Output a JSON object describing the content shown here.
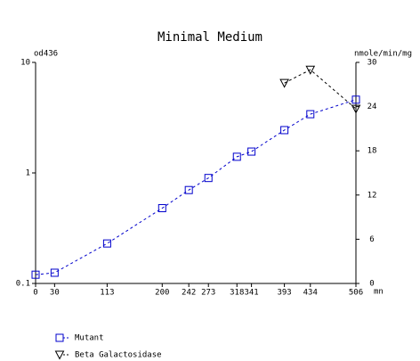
{
  "chart_data": {
    "type": "line",
    "title": "Minimal Medium",
    "ylabel": "od436",
    "y2label": "nmole/min/mg",
    "xlabel": "mn",
    "xlim": [
      0,
      506
    ],
    "xticks": [
      0,
      30,
      113,
      200,
      242,
      273,
      318,
      341,
      393,
      434,
      506
    ],
    "ylim": [
      0.1,
      10
    ],
    "yticks": [
      0.1,
      1,
      10
    ],
    "yscale": "log",
    "y2lim": [
      0,
      30
    ],
    "y2ticks": [
      0,
      6,
      12,
      18,
      24,
      30
    ],
    "series": [
      {
        "name": "Mutant",
        "color": "#0000cc",
        "marker": "square",
        "x": [
          0,
          30,
          113,
          200,
          242,
          273,
          318,
          341,
          393,
          434,
          506
        ],
        "values": [
          0.12,
          0.125,
          0.23,
          0.48,
          0.7,
          0.9,
          1.4,
          1.56,
          2.44,
          3.4,
          4.6
        ]
      },
      {
        "name": "Beta Galactosidase",
        "color": "#000000",
        "marker": "triangle-down",
        "axis": "y2",
        "x": [
          393,
          434,
          506
        ],
        "values": [
          27.2,
          29,
          23.7
        ]
      }
    ]
  }
}
